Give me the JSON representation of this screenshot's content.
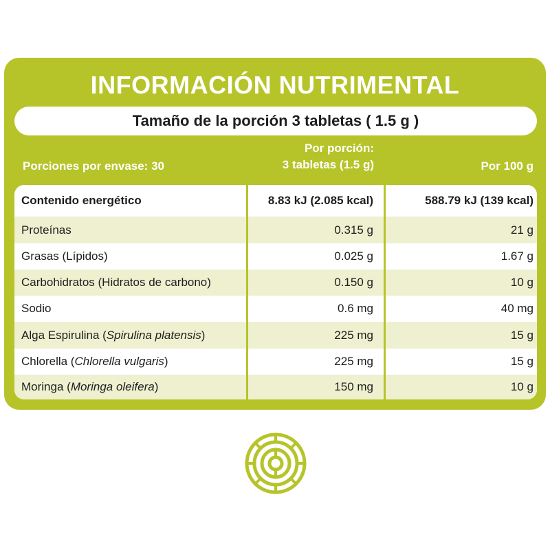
{
  "title": "INFORMACIÓN NUTRIMENTAL",
  "serving_size": "Tamaño de la porción 3 tabletas ( 1.5 g )",
  "headers": {
    "portions": "Porciones por envase: 30",
    "per_portion_line1": "Por porción:",
    "per_portion_line2": "3 tabletas (1.5 g)",
    "per_100": "Por 100 g"
  },
  "rows": [
    {
      "name": "Contenido energético",
      "sci": "",
      "per_portion": "8.83 kJ (2.085 kcal)",
      "per_100": "588.79 kJ (139 kcal)"
    },
    {
      "name": "Proteínas",
      "sci": "",
      "per_portion": "0.315 g",
      "per_100": "21 g"
    },
    {
      "name": "Grasas (Lípidos)",
      "sci": "",
      "per_portion": "0.025 g",
      "per_100": "1.67 g"
    },
    {
      "name": "Carbohidratos (Hidratos de carbono)",
      "sci": "",
      "per_portion": "0.150 g",
      "per_100": "10 g"
    },
    {
      "name": "Sodio",
      "sci": "",
      "per_portion": "0.6 mg",
      "per_100": "40 mg"
    },
    {
      "name": "Alga Espirulina (",
      "sci": "Spirulina platensis",
      "per_portion": "225 mg",
      "per_100": "15 g"
    },
    {
      "name": "Chlorella (",
      "sci": "Chlorella vulgaris",
      "per_portion": "225 mg",
      "per_100": "15 g"
    },
    {
      "name": "Moringa (",
      "sci": "Moringa oleifera",
      "per_portion": "150 mg",
      "per_100": "10 g"
    }
  ],
  "colors": {
    "accent": "#b6c42a",
    "row_shade": "#eef0d0",
    "text": "#1e1e1e"
  },
  "icons": {
    "logo": "concentric-circle-emblem-icon"
  }
}
